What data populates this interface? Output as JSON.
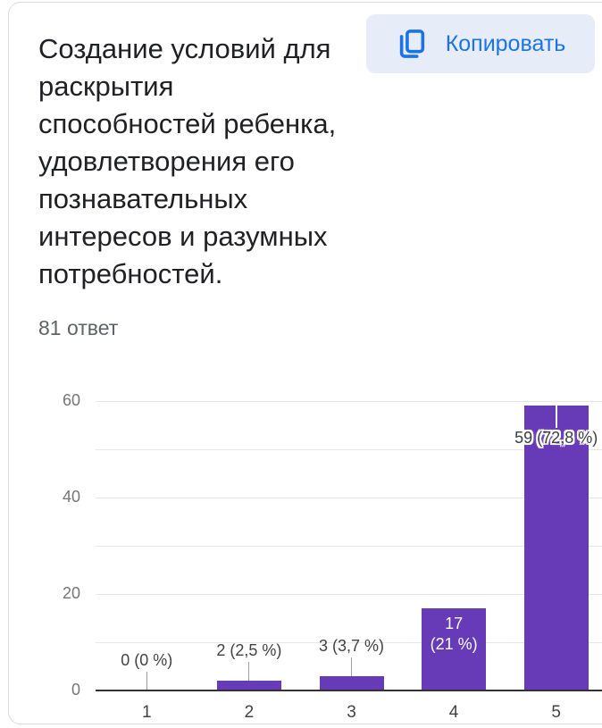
{
  "card": {
    "title": "Создание условий для\nраскрытия\nспособностей ребенка,\nудовлетворения его\nпознавательных\nинтересов и разумных\nпотребностей.",
    "responses_label": "81 ответ",
    "copy_button": {
      "label": "Копировать"
    }
  },
  "colors": {
    "accent_blue": "#1a73e8",
    "button_background": "#e7edf8",
    "bar_purple": "#673ab7",
    "card_border": "#dadce0",
    "title_text": "#202124",
    "secondary_text": "#5f6368"
  },
  "chart_data": {
    "type": "bar",
    "title": "",
    "xlabel": "",
    "ylabel": "",
    "categories": [
      "1",
      "2",
      "3",
      "4",
      "5"
    ],
    "values": [
      0,
      2,
      3,
      17,
      59
    ],
    "bar_labels": [
      {
        "text": "0 (0 %)",
        "placement": "above"
      },
      {
        "text": "2 (2,5 %)",
        "placement": "above"
      },
      {
        "text": "3 (3,7 %)",
        "placement": "above"
      },
      {
        "text": "17\n(21 %)",
        "placement": "inside"
      },
      {
        "text": "59 (72,8 %)",
        "placement": "overlay"
      }
    ],
    "ylim": [
      0,
      60
    ],
    "yticks": [
      0,
      20,
      40,
      60
    ],
    "grid_step": 10,
    "bar_color": "#673ab7",
    "legend": "none",
    "grid": true
  }
}
